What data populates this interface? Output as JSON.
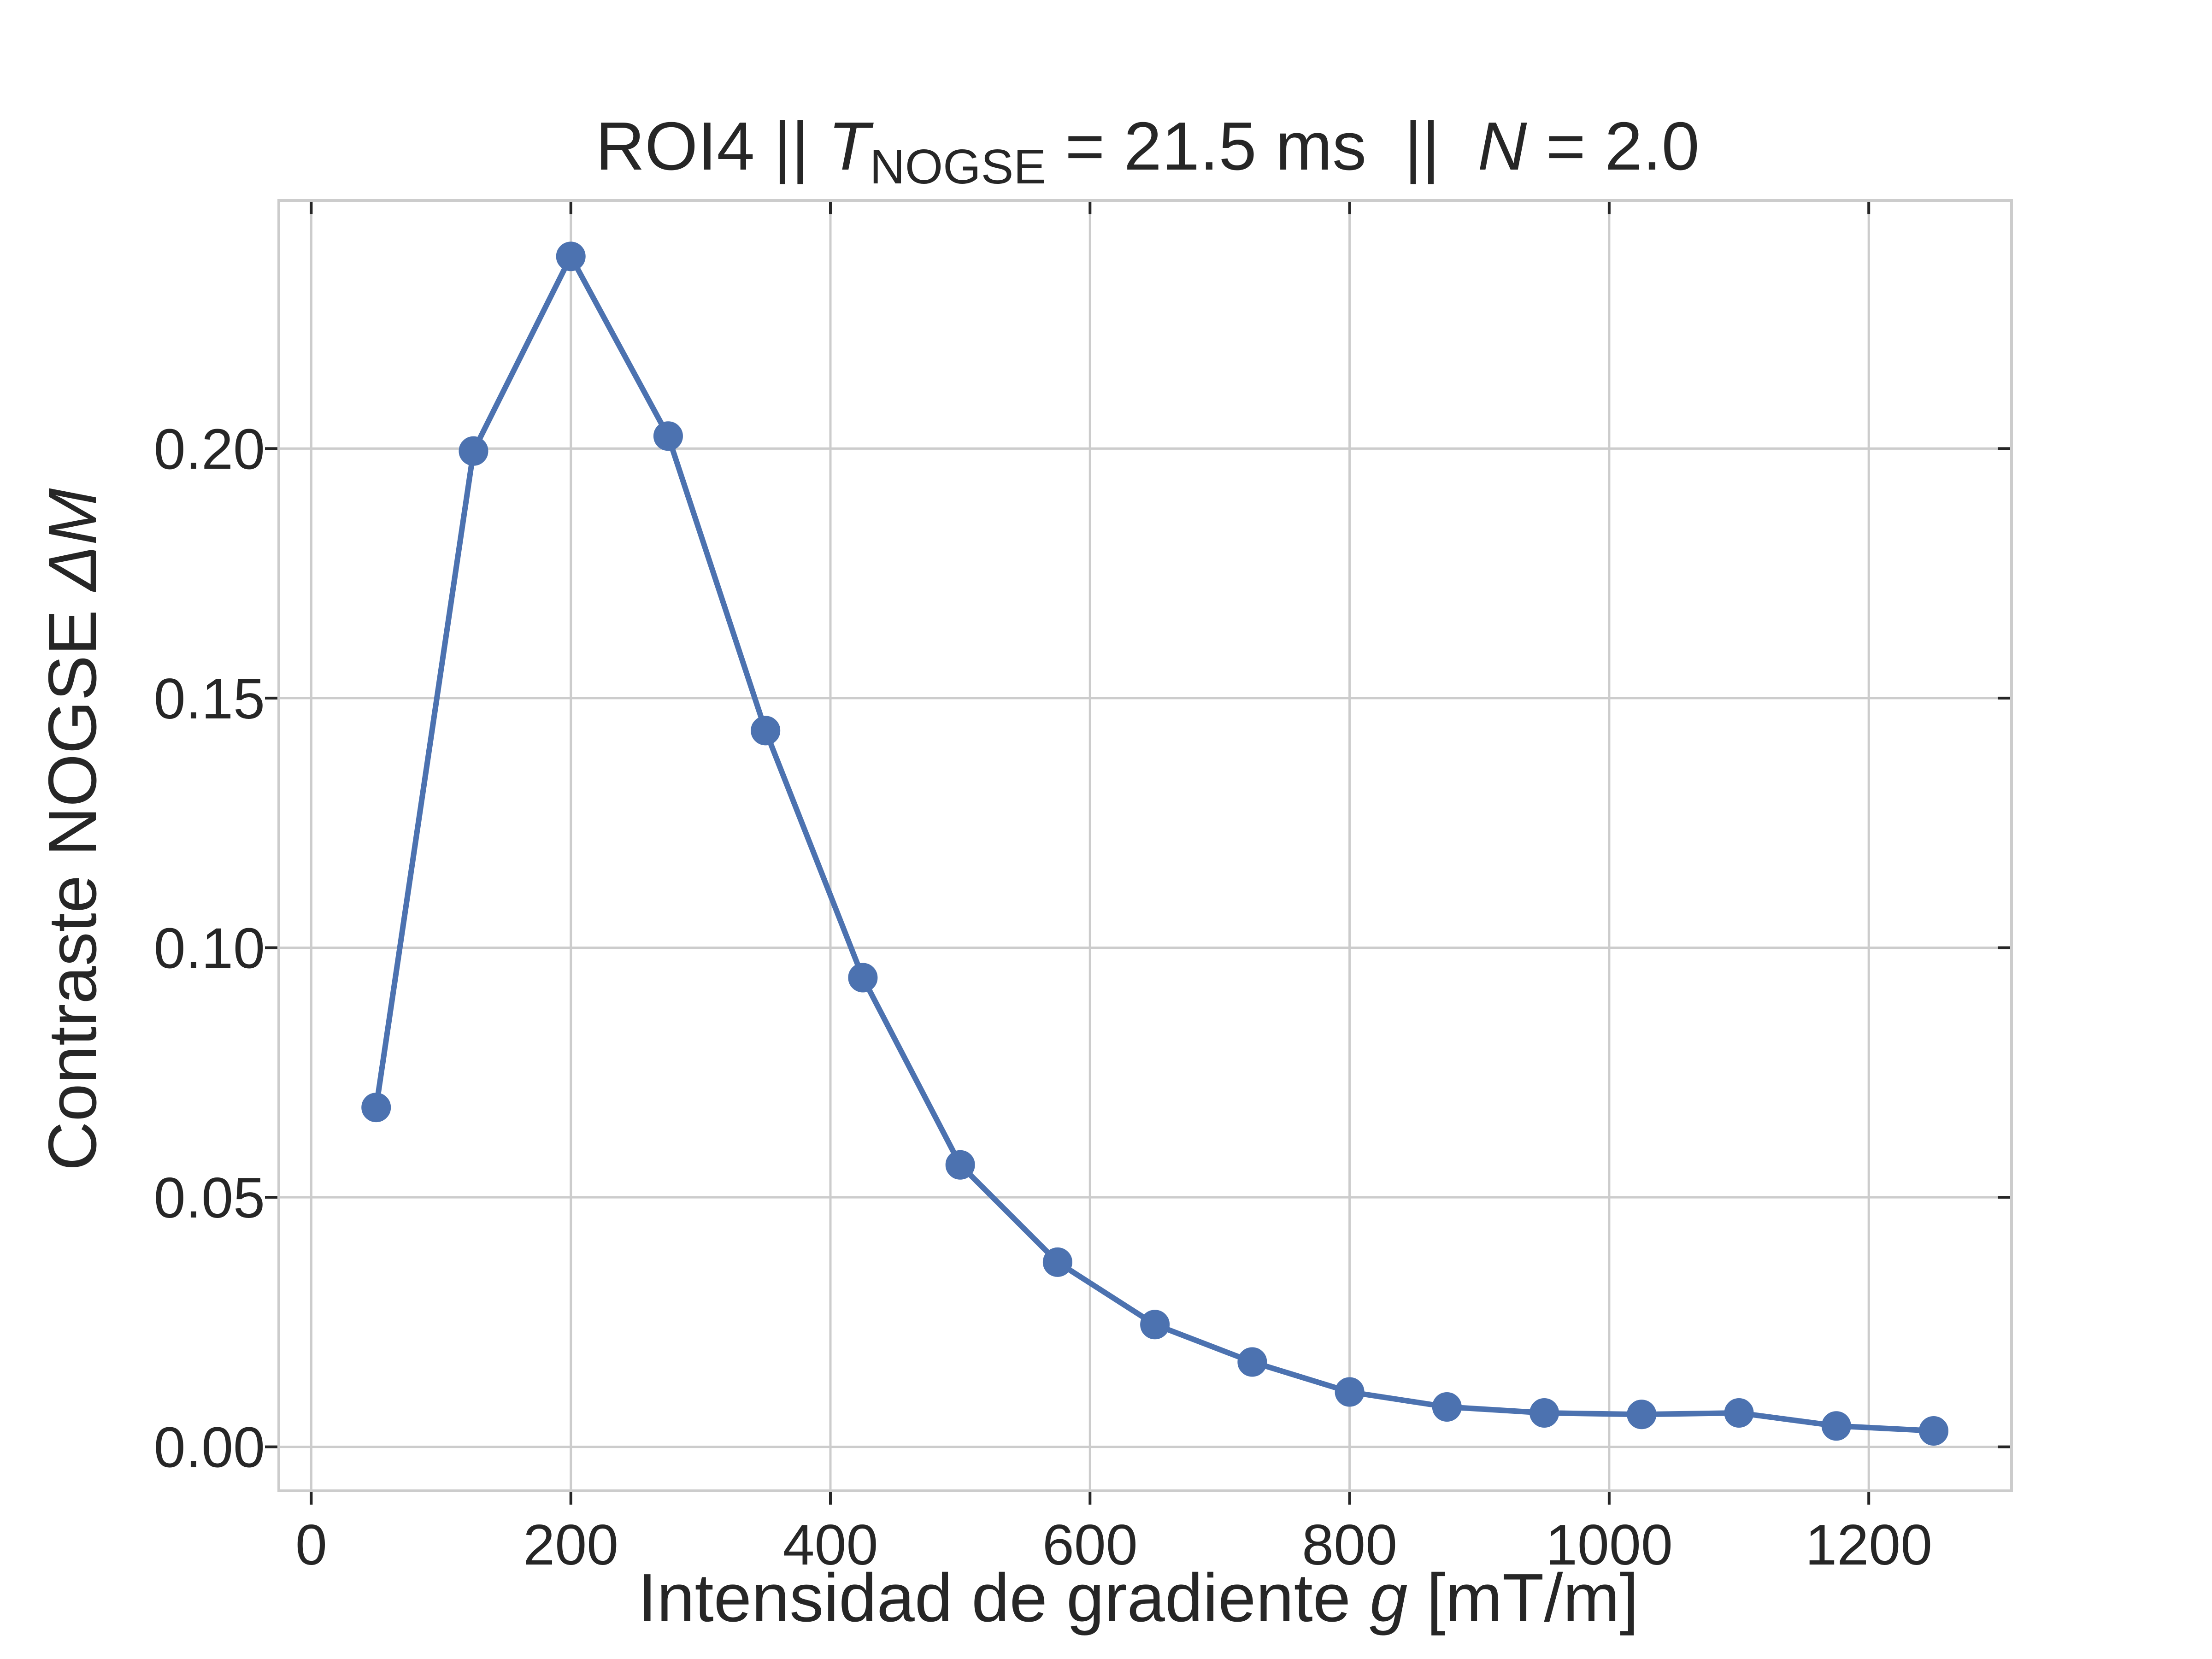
{
  "chart_data": {
    "type": "line",
    "title": {
      "prefix": "ROI4 || ",
      "t_symbol": "T",
      "t_subscript": "NOGSE",
      "t_value": " = 21.5 ms  ||  ",
      "n_symbol": "N",
      "n_value": " = 2.0"
    },
    "xlabel": {
      "text": "Intensidad de gradiente ",
      "symbol": "g",
      "unit": " [mT/m]"
    },
    "ylabel": {
      "text": "Contraste NOGSE ",
      "symbol": "ΔM"
    },
    "xlim": [
      -25,
      1310
    ],
    "ylim": [
      -0.0088,
      0.2497
    ],
    "xticks": [
      0,
      200,
      400,
      600,
      800,
      1000,
      1200
    ],
    "yticks": [
      0.0,
      0.05,
      0.1,
      0.15,
      0.2
    ],
    "xtick_labels": [
      "0",
      "200",
      "400",
      "600",
      "800",
      "1000",
      "1200"
    ],
    "ytick_labels": [
      "0.00",
      "0.05",
      "0.10",
      "0.15",
      "0.20"
    ],
    "grid": true,
    "series": [
      {
        "color": "#4c72b0",
        "marker": "circle",
        "x": [
          50,
          125,
          200,
          275,
          350,
          425,
          500,
          575,
          650,
          725,
          800,
          875,
          950,
          1025,
          1100,
          1175,
          1250
        ],
        "y": [
          0.068,
          0.1995,
          0.2385,
          0.2025,
          0.1435,
          0.094,
          0.0565,
          0.037,
          0.0245,
          0.017,
          0.011,
          0.008,
          0.0068,
          0.0065,
          0.0068,
          0.0042,
          0.0032
        ]
      }
    ]
  }
}
